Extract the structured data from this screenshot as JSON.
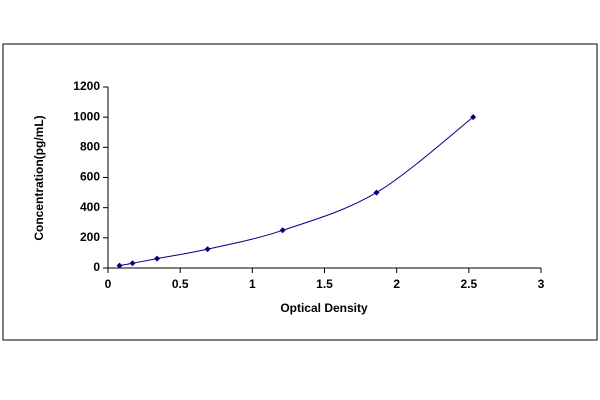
{
  "chart_data": {
    "type": "line",
    "xlabel": "Optical Density",
    "ylabel": "Concentration(pg/mL)",
    "series": [
      {
        "color": "#000080",
        "x": [
          0.08,
          0.17,
          0.34,
          0.69,
          1.21,
          1.86,
          2.53
        ],
        "values": [
          15.6,
          31.2,
          62.5,
          125,
          250,
          500,
          1000
        ]
      }
    ],
    "xlim": [
      0,
      3
    ],
    "xticks": [
      0,
      0.5,
      1,
      1.5,
      2,
      2.5,
      3
    ],
    "ylim": [
      0,
      1200
    ],
    "yticks": [
      0,
      200,
      400,
      600,
      800,
      1000,
      1200
    ],
    "grid": false,
    "markers": "diamond",
    "smooth": true
  }
}
